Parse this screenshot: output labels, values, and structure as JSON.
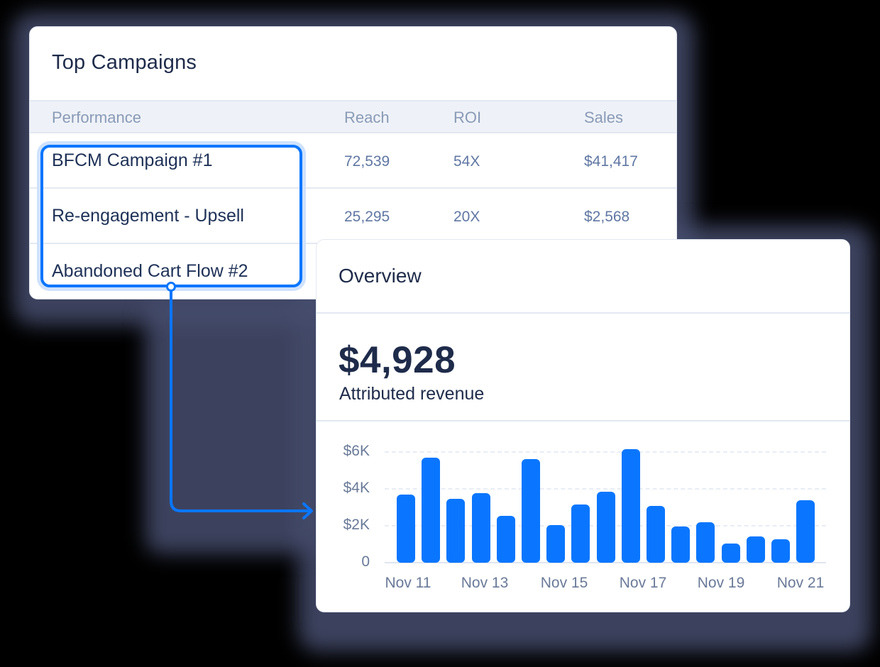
{
  "campaigns_card": {
    "title": "Top Campaigns",
    "columns": [
      "Performance",
      "Reach",
      "ROI",
      "Sales"
    ],
    "rows": [
      {
        "name": "BFCM Campaign #1",
        "reach": "72,539",
        "roi": "54X",
        "sales": "$41,417"
      },
      {
        "name": "Re-engagement - Upsell",
        "reach": "25,295",
        "roi": "20X",
        "sales": "$2,568"
      },
      {
        "name": "Abandoned Cart Flow #2",
        "reach": "",
        "roi": "",
        "sales": ""
      }
    ],
    "highlight_color": "#0A76FF"
  },
  "overview_card": {
    "title": "Overview",
    "metric_value": "$4,928",
    "metric_label": "Attributed revenue"
  },
  "chart_data": {
    "type": "bar",
    "title": "",
    "xlabel": "",
    "ylabel": "",
    "y_ticks": [
      "0",
      "$2K",
      "$4K",
      "$6K"
    ],
    "ylim": [
      0,
      6000
    ],
    "x_tick_labels": [
      "Nov 11",
      "Nov 13",
      "Nov 15",
      "Nov 17",
      "Nov 19",
      "Nov 21"
    ],
    "grid": true,
    "bar_color": "#0A76FF",
    "values": [
      3680,
      5700,
      3450,
      3760,
      2530,
      5620,
      2050,
      3140,
      3840,
      6170,
      3060,
      1980,
      2210,
      1050,
      1430,
      1280,
      3370
    ]
  }
}
